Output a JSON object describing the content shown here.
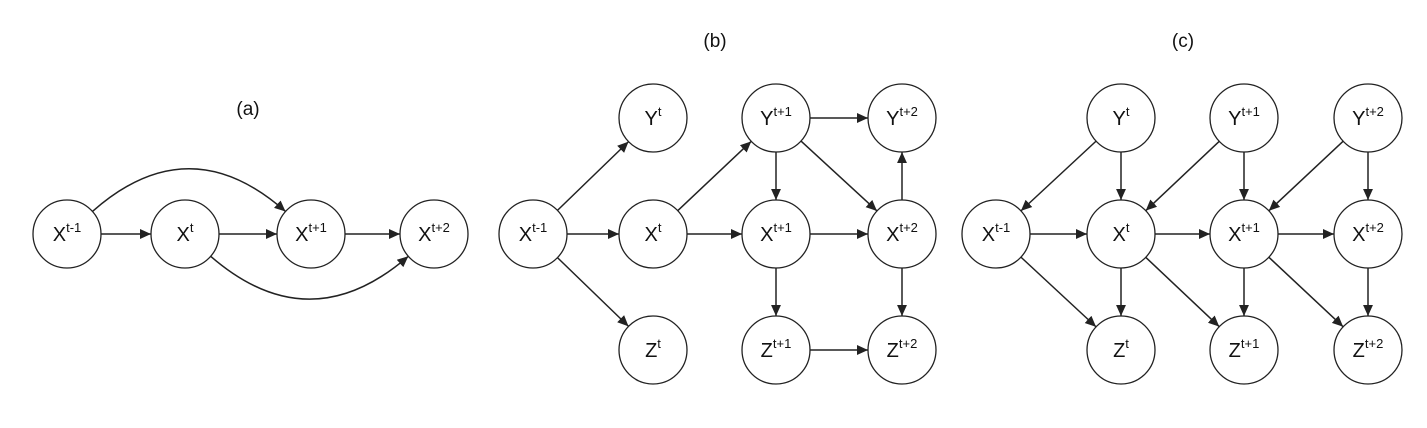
{
  "panels": [
    {
      "id": "a",
      "title": "(a)",
      "nodes": [
        {
          "id": "a_x0",
          "base": "X",
          "sup": "t-1"
        },
        {
          "id": "a_x1",
          "base": "X",
          "sup": "t"
        },
        {
          "id": "a_x2",
          "base": "X",
          "sup": "t+1"
        },
        {
          "id": "a_x3",
          "base": "X",
          "sup": "t+2"
        }
      ],
      "edges": [
        {
          "from": "a_x0",
          "to": "a_x1"
        },
        {
          "from": "a_x1",
          "to": "a_x2"
        },
        {
          "from": "a_x2",
          "to": "a_x3"
        },
        {
          "from": "a_x0",
          "to": "a_x2",
          "curve": "up"
        },
        {
          "from": "a_x1",
          "to": "a_x3",
          "curve": "down"
        }
      ]
    },
    {
      "id": "b",
      "title": "(b)",
      "nodes": [
        {
          "id": "b_x0",
          "base": "X",
          "sup": "t-1"
        },
        {
          "id": "b_y1",
          "base": "Y",
          "sup": "t"
        },
        {
          "id": "b_x1",
          "base": "X",
          "sup": "t"
        },
        {
          "id": "b_z1",
          "base": "Z",
          "sup": "t"
        },
        {
          "id": "b_y2",
          "base": "Y",
          "sup": "t+1"
        },
        {
          "id": "b_x2",
          "base": "X",
          "sup": "t+1"
        },
        {
          "id": "b_z2",
          "base": "Z",
          "sup": "t+1"
        },
        {
          "id": "b_y3",
          "base": "Y",
          "sup": "t+2"
        },
        {
          "id": "b_x3",
          "base": "X",
          "sup": "t+2"
        },
        {
          "id": "b_z3",
          "base": "Z",
          "sup": "t+2"
        }
      ],
      "edges": [
        {
          "from": "b_x0",
          "to": "b_y1"
        },
        {
          "from": "b_x0",
          "to": "b_x1"
        },
        {
          "from": "b_x0",
          "to": "b_z1"
        },
        {
          "from": "b_x1",
          "to": "b_y2"
        },
        {
          "from": "b_x1",
          "to": "b_x2"
        },
        {
          "from": "b_y2",
          "to": "b_y3"
        },
        {
          "from": "b_y2",
          "to": "b_x2"
        },
        {
          "from": "b_y2",
          "to": "b_x3"
        },
        {
          "from": "b_x2",
          "to": "b_x3"
        },
        {
          "from": "b_x3",
          "to": "b_y3"
        },
        {
          "from": "b_x2",
          "to": "b_z2"
        },
        {
          "from": "b_x3",
          "to": "b_z3"
        },
        {
          "from": "b_z2",
          "to": "b_z3"
        }
      ]
    },
    {
      "id": "c",
      "title": "(c)",
      "nodes": [
        {
          "id": "c_x0",
          "base": "X",
          "sup": "t-1"
        },
        {
          "id": "c_y1",
          "base": "Y",
          "sup": "t"
        },
        {
          "id": "c_x1",
          "base": "X",
          "sup": "t"
        },
        {
          "id": "c_z1",
          "base": "Z",
          "sup": "t"
        },
        {
          "id": "c_y2",
          "base": "Y",
          "sup": "t+1"
        },
        {
          "id": "c_x2",
          "base": "X",
          "sup": "t+1"
        },
        {
          "id": "c_z2",
          "base": "Z",
          "sup": "t+1"
        },
        {
          "id": "c_y3",
          "base": "Y",
          "sup": "t+2"
        },
        {
          "id": "c_x3",
          "base": "X",
          "sup": "t+2"
        },
        {
          "id": "c_z3",
          "base": "Z",
          "sup": "t+2"
        }
      ],
      "edges": [
        {
          "from": "c_y1",
          "to": "c_x0"
        },
        {
          "from": "c_y1",
          "to": "c_x1"
        },
        {
          "from": "c_x0",
          "to": "c_x1"
        },
        {
          "from": "c_x0",
          "to": "c_z1"
        },
        {
          "from": "c_x1",
          "to": "c_z1"
        },
        {
          "from": "c_y2",
          "to": "c_x1"
        },
        {
          "from": "c_y2",
          "to": "c_x2"
        },
        {
          "from": "c_x1",
          "to": "c_x2"
        },
        {
          "from": "c_x1",
          "to": "c_z2"
        },
        {
          "from": "c_x2",
          "to": "c_z2"
        },
        {
          "from": "c_y3",
          "to": "c_x2"
        },
        {
          "from": "c_y3",
          "to": "c_x3"
        },
        {
          "from": "c_x2",
          "to": "c_x3"
        },
        {
          "from": "c_x2",
          "to": "c_z3"
        },
        {
          "from": "c_x3",
          "to": "c_z3"
        }
      ]
    }
  ]
}
